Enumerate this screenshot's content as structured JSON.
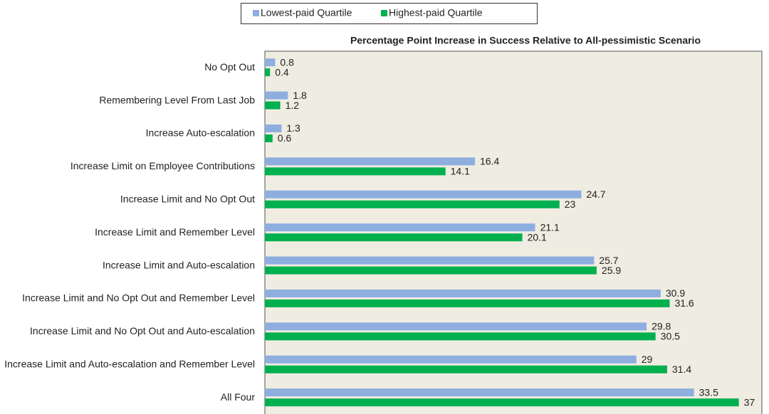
{
  "chart_data": {
    "type": "hbar",
    "title": "Percentage Point Increase in Success Relative to All-pessimistic Scenario",
    "categories": [
      "No Opt Out",
      "Remembering Level From Last Job",
      "Increase Auto-escalation",
      "Increase Limit on Employee Contributions",
      "Increase Limit and No Opt Out",
      "Increase Limit and Remember Level",
      "Increase Limit and Auto-escalation",
      "Increase Limit and No Opt Out and Remember Level",
      "Increase Limit and No Opt Out and Auto-escalation",
      "Increase Limit  and Auto-escalation and Remember Level",
      "All Four"
    ],
    "series": [
      {
        "name": "Lowest-paid Quartile",
        "color": "#8eaee0",
        "values": [
          0.8,
          1.8,
          1.3,
          16.4,
          24.7,
          21.1,
          25.7,
          30.9,
          29.8,
          29,
          33.5
        ]
      },
      {
        "name": "Highest-paid Quartile",
        "color": "#00b04f",
        "values": [
          0.4,
          1.2,
          0.6,
          14.1,
          23,
          20.1,
          25.9,
          31.6,
          30.5,
          31.4,
          37
        ]
      }
    ],
    "xlim": [
      0,
      38.8
    ]
  }
}
